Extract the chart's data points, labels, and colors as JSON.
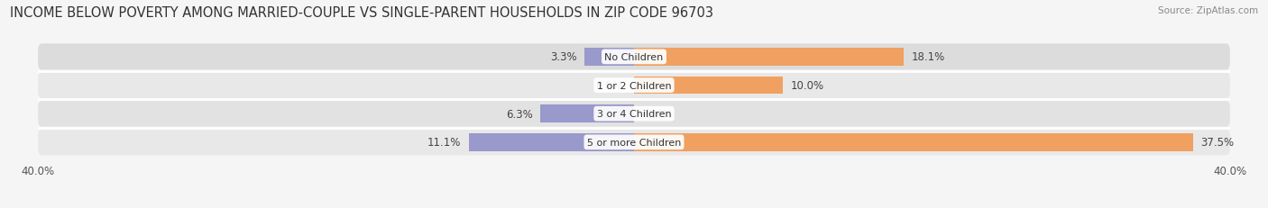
{
  "title": "INCOME BELOW POVERTY AMONG MARRIED-COUPLE VS SINGLE-PARENT HOUSEHOLDS IN ZIP CODE 96703",
  "source": "Source: ZipAtlas.com",
  "categories": [
    "No Children",
    "1 or 2 Children",
    "3 or 4 Children",
    "5 or more Children"
  ],
  "married_values": [
    3.3,
    0.0,
    6.3,
    11.1
  ],
  "single_values": [
    18.1,
    10.0,
    0.0,
    37.5
  ],
  "married_color": "#9999cc",
  "single_color": "#f0a060",
  "xlim": [
    -40,
    40
  ],
  "bar_height": 0.62,
  "background_color": "#f5f5f5",
  "bar_bg_color": "#e4e4e4",
  "row_bg_light": "#ebebeb",
  "row_bg_dark": "#e0e0e0",
  "title_fontsize": 10.5,
  "label_fontsize": 8.5,
  "tick_fontsize": 8.5,
  "figsize": [
    14.06,
    2.32
  ],
  "dpi": 100
}
